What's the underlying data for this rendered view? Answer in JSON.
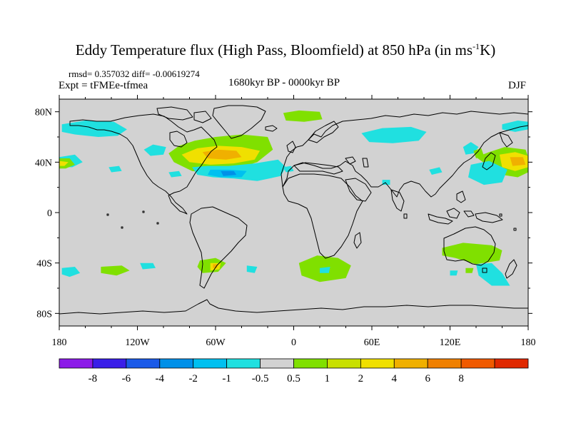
{
  "title": "Eddy Temperature flux (High Pass, Bloomfield) at 850 hPa (in ms",
  "title_sup": "-1",
  "title_end": "K)",
  "stats": "rmsd= 0.357032 diff= -0.00619274",
  "expt": "Expt = tFMEe-tfmea",
  "period": "1680kyr BP - 0000kyr BP",
  "season": "DJF",
  "map": {
    "projection": "cylindrical equidistant",
    "lon_range": [
      -180,
      180
    ],
    "lat_range": [
      -90,
      90
    ],
    "background_color": "#d2d2d2",
    "x_ticks": [
      {
        "value": -180,
        "label": "180"
      },
      {
        "value": -120,
        "label": "120W"
      },
      {
        "value": -60,
        "label": "60W"
      },
      {
        "value": 0,
        "label": "0"
      },
      {
        "value": 60,
        "label": "60E"
      },
      {
        "value": 120,
        "label": "120E"
      },
      {
        "value": 180,
        "label": "180"
      }
    ],
    "y_ticks": [
      {
        "value": 80,
        "label": "80N"
      },
      {
        "value": 40,
        "label": "40N"
      },
      {
        "value": 0,
        "label": "0"
      },
      {
        "value": -40,
        "label": "40S"
      },
      {
        "value": -80,
        "label": "80S"
      }
    ],
    "regions": [
      {
        "name": "NE Pacific high-lat (neg)",
        "value": -1,
        "color": "#20e0e0",
        "points": [
          [
            -178,
            70
          ],
          [
            -160,
            73
          ],
          [
            -138,
            72
          ],
          [
            -128,
            66
          ],
          [
            -135,
            61
          ],
          [
            -150,
            60
          ],
          [
            -168,
            62
          ],
          [
            -178,
            64
          ]
        ]
      },
      {
        "name": "W Canada neg",
        "value": -1,
        "color": "#20e0e0",
        "points": [
          [
            -115,
            50
          ],
          [
            -108,
            54
          ],
          [
            -98,
            52
          ],
          [
            -100,
            46
          ],
          [
            -110,
            45
          ]
        ]
      },
      {
        "name": "N America storm track",
        "value": 1,
        "color": "#80e000",
        "points": [
          [
            -96,
            47
          ],
          [
            -88,
            53
          ],
          [
            -76,
            57
          ],
          [
            -60,
            60
          ],
          [
            -40,
            62
          ],
          [
            -20,
            60
          ],
          [
            -16,
            50
          ],
          [
            -28,
            40
          ],
          [
            -46,
            34
          ],
          [
            -62,
            31
          ],
          [
            -78,
            33
          ],
          [
            -92,
            40
          ]
        ]
      },
      {
        "name": "N America storm track core",
        "value": 2,
        "color": "#f0e000",
        "points": [
          [
            -86,
            46
          ],
          [
            -74,
            51
          ],
          [
            -58,
            53
          ],
          [
            -40,
            52
          ],
          [
            -26,
            49
          ],
          [
            -30,
            42
          ],
          [
            -46,
            39
          ],
          [
            -64,
            38
          ],
          [
            -80,
            40
          ]
        ]
      },
      {
        "name": "N America storm track peak",
        "value": 4,
        "color": "#f0b000",
        "points": [
          [
            -70,
            48
          ],
          [
            -58,
            50
          ],
          [
            -44,
            49
          ],
          [
            -40,
            44
          ],
          [
            -52,
            42
          ],
          [
            -66,
            43
          ]
        ]
      },
      {
        "name": "NW Atlantic neg",
        "value": -1,
        "color": "#20e0e0",
        "points": [
          [
            -78,
            36
          ],
          [
            -66,
            37
          ],
          [
            -50,
            37
          ],
          [
            -30,
            39
          ],
          [
            -12,
            42
          ],
          [
            -6,
            36
          ],
          [
            -10,
            29
          ],
          [
            -28,
            25
          ],
          [
            -46,
            27
          ],
          [
            -62,
            28
          ],
          [
            -74,
            30
          ]
        ]
      },
      {
        "name": "NW Atlantic neg core",
        "value": -2,
        "color": "#00c0f0",
        "points": [
          [
            -64,
            34
          ],
          [
            -50,
            34
          ],
          [
            -36,
            33
          ],
          [
            -40,
            28
          ],
          [
            -56,
            28
          ],
          [
            -66,
            30
          ]
        ]
      },
      {
        "name": "NW Atlantic neg peak",
        "value": -4,
        "color": "#0090e8",
        "points": [
          [
            -56,
            33
          ],
          [
            -46,
            33
          ],
          [
            -44,
            30
          ],
          [
            -54,
            29
          ]
        ]
      },
      {
        "name": "E Pacific neg",
        "value": -1,
        "color": "#20e0e0",
        "points": [
          [
            -180,
            44
          ],
          [
            -168,
            46
          ],
          [
            -162,
            40
          ],
          [
            -170,
            36
          ],
          [
            -180,
            36
          ]
        ]
      },
      {
        "name": "E Pacific pos",
        "value": 1,
        "color": "#80e000",
        "points": [
          [
            -180,
            43
          ],
          [
            -172,
            43
          ],
          [
            -168,
            38
          ],
          [
            -175,
            35
          ],
          [
            -180,
            35
          ]
        ]
      },
      {
        "name": "E Pacific pos core",
        "value": 2,
        "color": "#f0e000",
        "points": [
          [
            -180,
            41
          ],
          [
            -173,
            40
          ],
          [
            -176,
            37
          ],
          [
            -180,
            37
          ]
        ]
      },
      {
        "name": "Central Pacific neg",
        "value": -1,
        "color": "#20e0e0",
        "points": [
          [
            -142,
            36
          ],
          [
            -134,
            37
          ],
          [
            -132,
            33
          ],
          [
            -140,
            32
          ]
        ]
      },
      {
        "name": "Gulf neg",
        "value": -1,
        "color": "#20e0e0",
        "points": [
          [
            -96,
            32
          ],
          [
            -88,
            33
          ],
          [
            -86,
            29
          ],
          [
            -94,
            28
          ]
        ]
      },
      {
        "name": "NE Atlantic small neg",
        "value": -1,
        "color": "#20e0e0",
        "points": [
          [
            -8,
            36
          ],
          [
            -2,
            37
          ],
          [
            0,
            33
          ],
          [
            -6,
            32
          ]
        ]
      },
      {
        "name": "Arctic pos",
        "value": 1,
        "color": "#80e000",
        "points": [
          [
            -8,
            79
          ],
          [
            4,
            81
          ],
          [
            20,
            80
          ],
          [
            22,
            74
          ],
          [
            8,
            72
          ],
          [
            -6,
            73
          ]
        ]
      },
      {
        "name": "Siberia neg",
        "value": -1,
        "color": "#20e0e0",
        "points": [
          [
            52,
            63
          ],
          [
            68,
            67
          ],
          [
            90,
            68
          ],
          [
            102,
            64
          ],
          [
            96,
            57
          ],
          [
            76,
            55
          ],
          [
            58,
            56
          ]
        ]
      },
      {
        "name": "Chukotka neg",
        "value": -1,
        "color": "#20e0e0",
        "points": [
          [
            160,
            70
          ],
          [
            172,
            73
          ],
          [
            180,
            72
          ],
          [
            180,
            66
          ],
          [
            170,
            64
          ],
          [
            160,
            66
          ]
        ]
      },
      {
        "name": "NW Pacific pos",
        "value": 1,
        "color": "#80e000",
        "points": [
          [
            150,
            48
          ],
          [
            162,
            52
          ],
          [
            178,
            50
          ],
          [
            180,
            44
          ],
          [
            180,
            32
          ],
          [
            172,
            28
          ],
          [
            160,
            30
          ],
          [
            148,
            38
          ],
          [
            140,
            44
          ]
        ]
      },
      {
        "name": "NW Pacific pos core",
        "value": 2,
        "color": "#f0e000",
        "points": [
          [
            158,
            46
          ],
          [
            170,
            48
          ],
          [
            180,
            45
          ],
          [
            180,
            36
          ],
          [
            170,
            33
          ],
          [
            160,
            36
          ]
        ]
      },
      {
        "name": "NW Pacific pos peak",
        "value": 4,
        "color": "#f0b000",
        "points": [
          [
            166,
            44
          ],
          [
            176,
            44
          ],
          [
            178,
            38
          ],
          [
            168,
            37
          ]
        ]
      },
      {
        "name": "W Pacific neg",
        "value": -1,
        "color": "#20e0e0",
        "points": [
          [
            136,
            38
          ],
          [
            150,
            41
          ],
          [
            164,
            34
          ],
          [
            160,
            24
          ],
          [
            146,
            22
          ],
          [
            134,
            28
          ]
        ]
      },
      {
        "name": "Japan neg",
        "value": -1,
        "color": "#20e0e0",
        "points": [
          [
            130,
            52
          ],
          [
            136,
            56
          ],
          [
            142,
            52
          ],
          [
            138,
            47
          ],
          [
            132,
            46
          ]
        ]
      },
      {
        "name": "Japan pos",
        "value": 1,
        "color": "#80e000",
        "points": [
          [
            138,
            49
          ],
          [
            144,
            51
          ],
          [
            146,
            45
          ],
          [
            140,
            43
          ]
        ]
      },
      {
        "name": "China neg",
        "value": -1,
        "color": "#20e0e0",
        "points": [
          [
            104,
            34
          ],
          [
            112,
            36
          ],
          [
            114,
            32
          ],
          [
            106,
            30
          ]
        ]
      },
      {
        "name": "Arabian neg",
        "value": -1,
        "color": "#20e0e0",
        "points": [
          [
            68,
            26
          ],
          [
            74,
            26
          ],
          [
            74,
            22
          ],
          [
            68,
            22
          ]
        ]
      },
      {
        "name": "S Pacific neg",
        "value": -1,
        "color": "#20e0e0",
        "points": [
          [
            -178,
            -44
          ],
          [
            -168,
            -43
          ],
          [
            -164,
            -48
          ],
          [
            -172,
            -51
          ],
          [
            -178,
            -49
          ]
        ]
      },
      {
        "name": "S Pacific pos",
        "value": 1,
        "color": "#80e000",
        "points": [
          [
            -148,
            -43
          ],
          [
            -132,
            -42
          ],
          [
            -126,
            -46
          ],
          [
            -136,
            -50
          ],
          [
            -148,
            -48
          ]
        ]
      },
      {
        "name": "S Pacific neg 2",
        "value": -1,
        "color": "#20e0e0",
        "points": [
          [
            -118,
            -40
          ],
          [
            -108,
            -40
          ],
          [
            -106,
            -44
          ],
          [
            -116,
            -45
          ]
        ]
      },
      {
        "name": "S America pos",
        "value": 1,
        "color": "#80e000",
        "points": [
          [
            -72,
            -38
          ],
          [
            -60,
            -36
          ],
          [
            -52,
            -40
          ],
          [
            -58,
            -47
          ],
          [
            -70,
            -48
          ],
          [
            -74,
            -43
          ]
        ]
      },
      {
        "name": "S America pos core",
        "value": 2,
        "color": "#f0e000",
        "points": [
          [
            -64,
            -40
          ],
          [
            -56,
            -40
          ],
          [
            -57,
            -45
          ],
          [
            -64,
            -46
          ]
        ]
      },
      {
        "name": "S America pos peak",
        "value": 4,
        "color": "#f0b000",
        "points": [
          [
            -62,
            -41
          ],
          [
            -58,
            -41
          ],
          [
            -59,
            -44
          ],
          [
            -62,
            -44
          ]
        ]
      },
      {
        "name": "S Atlantic neg",
        "value": -1,
        "color": "#20e0e0",
        "points": [
          [
            -36,
            -42
          ],
          [
            -28,
            -43
          ],
          [
            -30,
            -48
          ],
          [
            -36,
            -47
          ]
        ]
      },
      {
        "name": "S Atlantic pos",
        "value": 1,
        "color": "#80e000",
        "points": [
          [
            4,
            -40
          ],
          [
            18,
            -34
          ],
          [
            34,
            -36
          ],
          [
            44,
            -42
          ],
          [
            40,
            -52
          ],
          [
            20,
            -55
          ],
          [
            6,
            -50
          ]
        ]
      },
      {
        "name": "S Atlantic pos inner neg",
        "value": -1,
        "color": "#20e0e0",
        "points": [
          [
            20,
            -44
          ],
          [
            28,
            -43
          ],
          [
            27,
            -48
          ],
          [
            20,
            -48
          ]
        ]
      },
      {
        "name": "Australia pos",
        "value": 1,
        "color": "#80e000",
        "points": [
          [
            114,
            -28
          ],
          [
            130,
            -24
          ],
          [
            152,
            -26
          ],
          [
            160,
            -30
          ],
          [
            158,
            -38
          ],
          [
            140,
            -41
          ],
          [
            124,
            -36
          ],
          [
            114,
            -34
          ]
        ]
      },
      {
        "name": "Tasmania neg",
        "value": -1,
        "color": "#20e0e0",
        "points": [
          [
            140,
            -41
          ],
          [
            152,
            -40
          ],
          [
            160,
            -48
          ],
          [
            166,
            -58
          ],
          [
            152,
            -58
          ],
          [
            142,
            -50
          ]
        ]
      },
      {
        "name": "Australia small pos",
        "value": 1,
        "color": "#80e000",
        "points": [
          [
            132,
            -44
          ],
          [
            138,
            -44
          ],
          [
            137,
            -48
          ],
          [
            132,
            -48
          ]
        ]
      },
      {
        "name": "S Indian small neg",
        "value": -1,
        "color": "#20e0e0",
        "points": [
          [
            120,
            -46
          ],
          [
            126,
            -46
          ],
          [
            125,
            -50
          ],
          [
            120,
            -50
          ]
        ]
      }
    ]
  },
  "colorbar": {
    "labels": [
      "-8",
      "-6",
      "-4",
      "-2",
      "-1",
      "-0.5",
      "0.5",
      "1",
      "2",
      "4",
      "6",
      "8"
    ],
    "colors": [
      "#8c1ae8",
      "#3a1ee8",
      "#1a5ae8",
      "#0090e8",
      "#00c0f0",
      "#20e0e0",
      "#d2d2d2",
      "#80e000",
      "#c8e000",
      "#f0e000",
      "#f0b000",
      "#f08000",
      "#f05a00",
      "#e02800"
    ]
  }
}
